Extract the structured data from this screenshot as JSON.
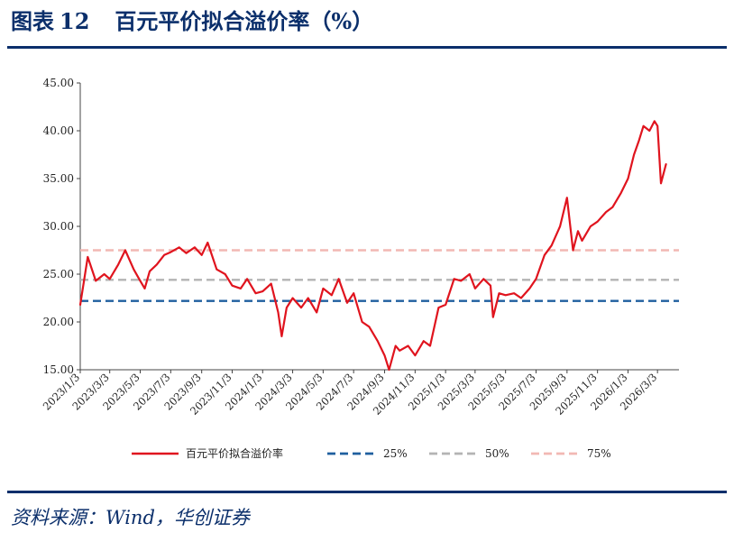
{
  "figure": {
    "label": "图表",
    "number": "12",
    "title": "百元平价拟合溢价率（%）",
    "source": "资料来源：Wind，华创证券"
  },
  "colors": {
    "navy": "#0b2f6b",
    "series_main": "#e0141e",
    "p25": "#1f5f9f",
    "p50": "#b4b4b4",
    "p75": "#f2b8b4"
  },
  "chart_data": {
    "type": "line",
    "title": "",
    "xlabel": "",
    "ylabel": "",
    "ylim": [
      15,
      45
    ],
    "yticks": [
      "15.00",
      "20.00",
      "25.00",
      "30.00",
      "35.00",
      "40.00",
      "45.00"
    ],
    "xlim": [
      "2023-01-03",
      "2026-04-15"
    ],
    "xtick_labels": [
      "2023/1/3",
      "2023/3/3",
      "2023/5/3",
      "2023/7/3",
      "2023/9/3",
      "2023/11/3",
      "2024/1/3",
      "2024/3/3",
      "2024/5/3",
      "2024/7/3",
      "2024/9/3",
      "2024/11/3",
      "2025/1/3",
      "2025/3/3",
      "2025/5/3",
      "2025/7/3",
      "2025/9/3",
      "2025/11/3",
      "2026/1/3",
      "2026/3/3"
    ],
    "grid": false,
    "legend_position": "bottom",
    "series": [
      {
        "name": "百元平价拟合溢价率",
        "style": "solid",
        "x": [
          "2023-01-03",
          "2023-01-18",
          "2023-02-03",
          "2023-02-20",
          "2023-03-03",
          "2023-03-20",
          "2023-04-03",
          "2023-04-20",
          "2023-05-03",
          "2023-05-12",
          "2023-05-22",
          "2023-06-05",
          "2023-06-20",
          "2023-07-03",
          "2023-07-20",
          "2023-08-03",
          "2023-08-20",
          "2023-09-03",
          "2023-09-15",
          "2023-10-03",
          "2023-10-20",
          "2023-11-03",
          "2023-11-20",
          "2023-12-03",
          "2023-12-20",
          "2024-01-03",
          "2024-01-20",
          "2024-02-03",
          "2024-02-10",
          "2024-02-20",
          "2024-03-03",
          "2024-03-20",
          "2024-04-03",
          "2024-04-20",
          "2024-05-03",
          "2024-05-20",
          "2024-06-03",
          "2024-06-20",
          "2024-07-03",
          "2024-07-20",
          "2024-08-03",
          "2024-08-20",
          "2024-09-03",
          "2024-09-12",
          "2024-09-25",
          "2024-10-03",
          "2024-10-20",
          "2024-11-03",
          "2024-11-20",
          "2024-12-03",
          "2024-12-20",
          "2025-01-03",
          "2025-01-20",
          "2025-02-03",
          "2025-02-20",
          "2025-03-03",
          "2025-03-20",
          "2025-04-03",
          "2025-04-08",
          "2025-04-20",
          "2025-05-03",
          "2025-05-20",
          "2025-06-03",
          "2025-06-20",
          "2025-07-03",
          "2025-07-20",
          "2025-08-03",
          "2025-08-20",
          "2025-09-03",
          "2025-09-15",
          "2025-09-25",
          "2025-10-03",
          "2025-10-20",
          "2025-11-03",
          "2025-11-20",
          "2025-12-03",
          "2025-12-20",
          "2026-01-03",
          "2026-01-15",
          "2026-01-25",
          "2026-02-03",
          "2026-02-15",
          "2026-02-25",
          "2026-03-03",
          "2026-03-10",
          "2026-03-20"
        ],
        "values": [
          21.8,
          26.8,
          24.3,
          25.0,
          24.5,
          26.0,
          27.5,
          25.5,
          24.3,
          23.5,
          25.3,
          26.0,
          27.0,
          27.3,
          27.8,
          27.2,
          27.8,
          27.0,
          28.3,
          25.5,
          25.0,
          23.8,
          23.5,
          24.5,
          23.0,
          23.2,
          24.0,
          21.0,
          18.5,
          21.5,
          22.5,
          21.5,
          22.5,
          21.0,
          23.5,
          22.8,
          24.5,
          22.0,
          23.0,
          20.0,
          19.5,
          18.0,
          16.5,
          15.0,
          17.5,
          17.0,
          17.5,
          16.5,
          18.0,
          17.5,
          21.5,
          21.8,
          24.5,
          24.3,
          25.0,
          23.5,
          24.5,
          23.8,
          20.5,
          23.0,
          22.8,
          23.0,
          22.5,
          23.5,
          24.5,
          27.0,
          28.0,
          30.0,
          33.0,
          27.5,
          29.5,
          28.5,
          30.0,
          30.5,
          31.5,
          32.0,
          33.5,
          35.0,
          37.5,
          39.0,
          40.5,
          40.0,
          41.0,
          40.5,
          34.5,
          36.5
        ]
      },
      {
        "name": "25%",
        "style": "dashed",
        "constant": 22.2
      },
      {
        "name": "50%",
        "style": "dashed",
        "constant": 24.4
      },
      {
        "name": "75%",
        "style": "dashed",
        "constant": 27.5
      }
    ]
  }
}
